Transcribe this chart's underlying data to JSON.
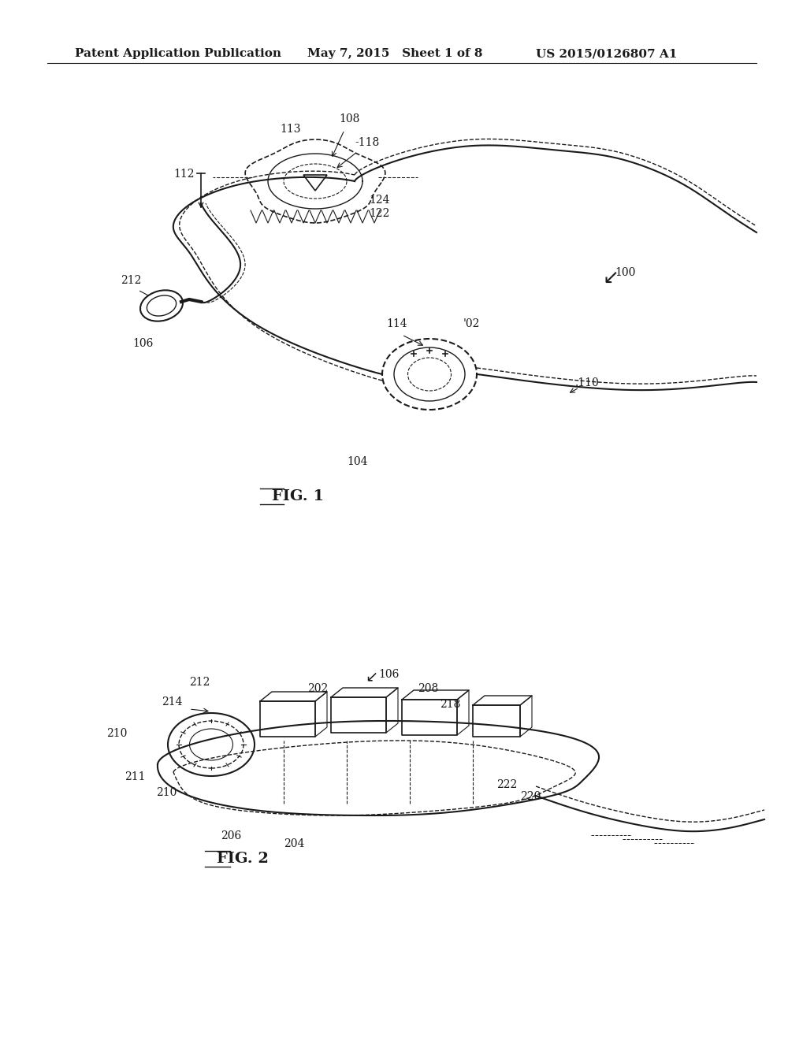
{
  "bg_color": "#ffffff",
  "header_left": "Patent Application Publication",
  "header_mid": "May 7, 2015   Sheet 1 of 8",
  "header_right": "US 2015/0126807 A1",
  "header_fontsize": 11,
  "fig1_label": "FIG. 1",
  "fig2_label": "FIG. 2",
  "line_color": "#1a1a1a",
  "label_fontsize": 10,
  "caption_fontsize": 12
}
